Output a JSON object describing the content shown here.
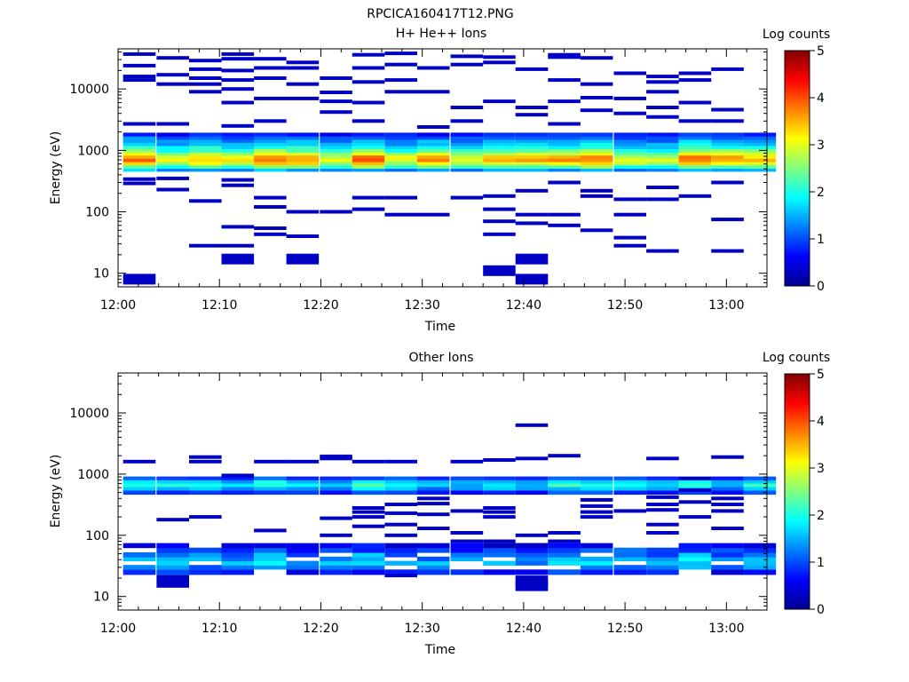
{
  "figure_title": "RPCICA160417T12.PNG",
  "chart_data": [
    {
      "type": "heatmap",
      "title": "H+ He++ Ions",
      "xlabel": "Time",
      "ylabel": "Energy (eV)",
      "x_tick_labels": [
        "12:00",
        "12:10",
        "12:20",
        "12:30",
        "12:40",
        "12:50",
        "13:00"
      ],
      "y_tick_labels": [
        "10",
        "100",
        "1000",
        "10000"
      ],
      "y_scale": "log",
      "ylim": [
        6,
        45000
      ],
      "xlim_minutes": [
        0,
        64
      ],
      "time_bins_start_minutes": [
        0.5,
        3.8,
        7.0,
        10.2,
        13.4,
        16.6,
        19.9,
        23.1,
        26.3,
        29.5,
        32.8,
        36.0,
        39.2,
        42.4,
        45.6,
        48.9,
        52.1,
        55.3,
        58.5,
        61.7
      ],
      "bin_width_minutes": 3.2,
      "colorbar": {
        "label": "Log counts",
        "ticks": [
          "0",
          "1",
          "2",
          "3",
          "4",
          "5"
        ],
        "range": [
          0,
          5
        ]
      },
      "core_band": {
        "energy_bins_eV": [
          480,
          540,
          610,
          690,
          780,
          880,
          990,
          1120,
          1260,
          1420,
          1600,
          1810
        ],
        "profile_log_counts": [
          1.4,
          2.2,
          3.0,
          3.4,
          3.3,
          2.8,
          2.3,
          1.9,
          1.6,
          1.4,
          1.1,
          0.7
        ]
      },
      "sparse_points": [
        {
          "t_bin": 0,
          "energies_eV": [
            8,
            290,
            340,
            2700,
            14000,
            16000,
            24000,
            37000
          ],
          "value": 0.3
        },
        {
          "t_bin": 1,
          "energies_eV": [
            230,
            350,
            2700,
            12000,
            17000,
            32000
          ],
          "value": 0.3
        },
        {
          "t_bin": 2,
          "energies_eV": [
            28,
            150,
            9000,
            12000,
            15000,
            21000,
            29000
          ],
          "value": 0.3
        },
        {
          "t_bin": 3,
          "energies_eV": [
            17,
            28,
            57,
            270,
            330,
            2500,
            6000,
            10000,
            14000,
            20000,
            31000,
            37000
          ],
          "value": 0.3
        },
        {
          "t_bin": 4,
          "energies_eV": [
            43,
            54,
            120,
            170,
            3000,
            7000,
            15000,
            22000,
            31000
          ],
          "value": 0.3
        },
        {
          "t_bin": 5,
          "energies_eV": [
            17,
            40,
            100,
            7000,
            12000,
            22000,
            27000
          ],
          "value": 0.3
        },
        {
          "t_bin": 6,
          "energies_eV": [
            100,
            4200,
            6300,
            8800,
            15000
          ],
          "value": 0.3
        },
        {
          "t_bin": 7,
          "energies_eV": [
            110,
            170,
            3000,
            6000,
            13000,
            22000,
            36000
          ],
          "value": 0.3
        },
        {
          "t_bin": 8,
          "energies_eV": [
            90,
            170,
            9000,
            14000,
            25000,
            38000
          ],
          "value": 0.3
        },
        {
          "t_bin": 9,
          "energies_eV": [
            90,
            2400,
            9000,
            22000
          ],
          "value": 0.3
        },
        {
          "t_bin": 10,
          "energies_eV": [
            170,
            3000,
            5000,
            25000,
            34000
          ],
          "value": 0.3
        },
        {
          "t_bin": 11,
          "energies_eV": [
            11,
            43,
            70,
            110,
            180,
            6300,
            27000,
            33000
          ],
          "value": 0.3
        },
        {
          "t_bin": 12,
          "energies_eV": [
            8,
            17,
            65,
            90,
            220,
            3800,
            5000,
            21000
          ],
          "value": 0.3
        },
        {
          "t_bin": 13,
          "energies_eV": [
            60,
            90,
            300,
            2700,
            6300,
            14000,
            33000,
            36000
          ],
          "value": 0.3
        },
        {
          "t_bin": 14,
          "energies_eV": [
            50,
            180,
            220,
            4500,
            7200,
            12000,
            32000
          ],
          "value": 0.3
        },
        {
          "t_bin": 15,
          "energies_eV": [
            28,
            38,
            90,
            160,
            4000,
            7000,
            18000
          ],
          "value": 0.3
        },
        {
          "t_bin": 16,
          "energies_eV": [
            23,
            160,
            250,
            3500,
            5000,
            9000,
            13000,
            16000
          ],
          "value": 0.3
        },
        {
          "t_bin": 17,
          "energies_eV": [
            180,
            3000,
            6000,
            14000,
            18000
          ],
          "value": 0.3
        },
        {
          "t_bin": 18,
          "energies_eV": [
            23,
            75,
            300,
            3000,
            4600,
            21000
          ],
          "value": 0.3
        }
      ]
    },
    {
      "type": "heatmap",
      "title": "Other Ions",
      "xlabel": "Time",
      "ylabel": "Energy (eV)",
      "x_tick_labels": [
        "12:00",
        "12:10",
        "12:20",
        "12:30",
        "12:40",
        "12:50",
        "13:00"
      ],
      "y_tick_labels": [
        "10",
        "100",
        "1000",
        "10000"
      ],
      "y_scale": "log",
      "ylim": [
        6,
        45000
      ],
      "xlim_minutes": [
        0,
        64
      ],
      "time_bins_start_minutes": [
        0.5,
        3.8,
        7.0,
        10.2,
        13.4,
        16.6,
        19.9,
        23.1,
        26.3,
        29.5,
        32.8,
        36.0,
        39.2,
        42.4,
        45.6,
        48.9,
        52.1,
        55.3,
        58.5,
        61.7
      ],
      "bin_width_minutes": 3.2,
      "colorbar": {
        "label": "Log counts",
        "ticks": [
          "0",
          "1",
          "2",
          "3",
          "4",
          "5"
        ],
        "range": [
          0,
          5
        ]
      },
      "core_band": {
        "energy_bins_eV": [
          500,
          580,
          660,
          750,
          850
        ],
        "profile_log_counts": [
          0.9,
          1.5,
          1.9,
          1.6,
          1.0
        ]
      },
      "low_band": {
        "energy_bins_eV": [
          25,
          30,
          35,
          41,
          48,
          57,
          68
        ],
        "profile_log_counts": [
          0.7,
          1.2,
          1.6,
          1.5,
          1.2,
          0.9,
          0.5
        ]
      },
      "sparse_points": [
        {
          "t_bin": 0,
          "energies_eV": [
            1600
          ],
          "value": 0.3
        },
        {
          "t_bin": 1,
          "energies_eV": [
            17,
            21,
            180
          ],
          "value": 0.3
        },
        {
          "t_bin": 2,
          "energies_eV": [
            200,
            1600,
            1900
          ],
          "value": 0.3
        },
        {
          "t_bin": 3,
          "energies_eV": [
            950
          ],
          "value": 0.3
        },
        {
          "t_bin": 4,
          "energies_eV": [
            120,
            1600
          ],
          "value": 0.3
        },
        {
          "t_bin": 5,
          "energies_eV": [
            1600
          ],
          "value": 0.3
        },
        {
          "t_bin": 6,
          "energies_eV": [
            100,
            190,
            1800,
            1950
          ],
          "value": 0.3
        },
        {
          "t_bin": 7,
          "energies_eV": [
            140,
            200,
            240,
            280,
            1600
          ],
          "value": 0.3
        },
        {
          "t_bin": 8,
          "energies_eV": [
            22,
            100,
            150,
            230,
            320,
            1600
          ],
          "value": 0.3
        },
        {
          "t_bin": 9,
          "energies_eV": [
            130,
            220,
            330,
            400
          ],
          "value": 0.3
        },
        {
          "t_bin": 10,
          "energies_eV": [
            80,
            110,
            250,
            1600
          ],
          "value": 0.3
        },
        {
          "t_bin": 11,
          "energies_eV": [
            80,
            200,
            240,
            280,
            1700
          ],
          "value": 0.3
        },
        {
          "t_bin": 12,
          "energies_eV": [
            15,
            18,
            70,
            100,
            6300,
            1800
          ],
          "value": 0.3
        },
        {
          "t_bin": 13,
          "energies_eV": [
            80,
            110,
            2000
          ],
          "value": 0.3
        },
        {
          "t_bin": 14,
          "energies_eV": [
            200,
            240,
            300,
            380
          ],
          "value": 0.3
        },
        {
          "t_bin": 15,
          "energies_eV": [
            250
          ],
          "value": 0.3
        },
        {
          "t_bin": 16,
          "energies_eV": [
            110,
            150,
            260,
            320,
            420,
            1800
          ],
          "value": 0.3
        },
        {
          "t_bin": 17,
          "energies_eV": [
            200,
            350,
            550,
            850
          ],
          "value": 0.3
        },
        {
          "t_bin": 18,
          "energies_eV": [
            130,
            250,
            320,
            400,
            1900
          ],
          "value": 0.3
        }
      ]
    }
  ]
}
